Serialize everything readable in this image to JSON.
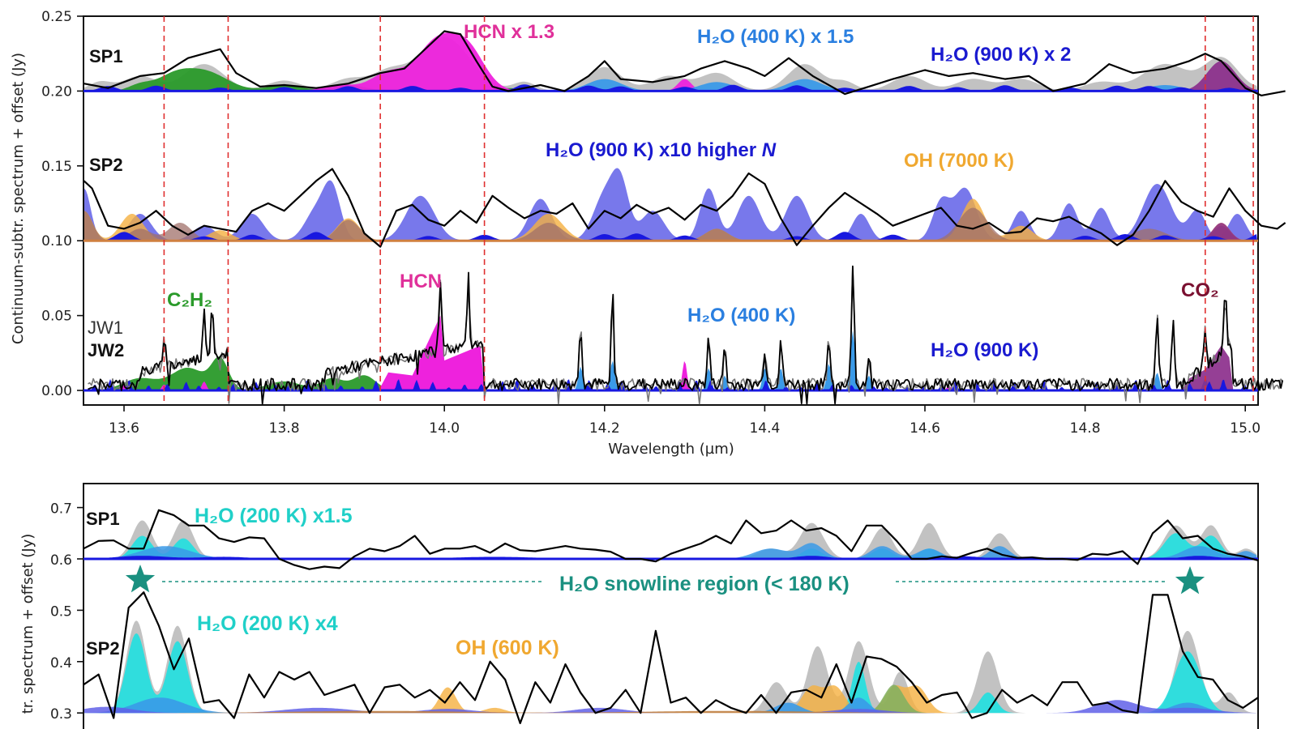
{
  "chart_data": [
    {
      "type": "area",
      "title": "",
      "xlabel": "Wavelength (µm)",
      "ylabel": "Continuum-subtr. spectrum + offset (Jy)",
      "xlim": [
        13.55,
        15.05
      ],
      "ylim": [
        -0.01,
        0.25
      ],
      "grid": false,
      "xticks": [
        13.6,
        13.8,
        14.0,
        14.2,
        14.4,
        14.6,
        14.8,
        15.0
      ],
      "xtick_labels": [
        "13.6",
        "13.8",
        "14.0",
        "14.2",
        "14.4",
        "14.6",
        "14.8",
        "15.0"
      ],
      "yticks": [
        0.0,
        0.05,
        0.1,
        0.15,
        0.2,
        0.25
      ],
      "ytick_labels": [
        "0.00",
        "0.05",
        "0.10",
        "0.15",
        "0.20",
        "0.25"
      ],
      "vlines": [
        13.65,
        13.73,
        13.92,
        14.05,
        14.95,
        15.01
      ],
      "vline_color": "#e03030",
      "offsets": {
        "SP1": 0.2,
        "SP2": 0.1,
        "JW": 0.0
      },
      "row_labels": [
        {
          "text": "SP1",
          "x": 13.56,
          "y": 0.215
        },
        {
          "text": "SP2",
          "x": 13.56,
          "y": 0.145
        },
        {
          "text": "JW1",
          "x": 13.555,
          "y": 0.038
        },
        {
          "text": "JW2",
          "x": 13.555,
          "y": 0.024
        }
      ],
      "annotations": [
        {
          "text": "HCN x 1.3",
          "x": 14.14,
          "y": 0.238,
          "color": "#e0309a"
        },
        {
          "text": "H₂O (400 K) x 1.5",
          "x": 14.48,
          "y": 0.234,
          "color": "#2a7fe0"
        },
        {
          "text": "H₂O (900 K) x 2",
          "x": 14.85,
          "y": 0.223,
          "color": "#1a1ad0"
        },
        {
          "text": "H₂O (900 K) x10 higher N",
          "x": 14.38,
          "y": 0.163,
          "color": "#1a1ad0"
        },
        {
          "text": "OH (7000 K)",
          "x": 14.74,
          "y": 0.155,
          "color": "#f0a830"
        },
        {
          "text": "C₂H₂",
          "x": 13.69,
          "y": 0.058,
          "color": "#2a9a2a"
        },
        {
          "text": "HCN",
          "x": 13.99,
          "y": 0.069,
          "color": "#e0309a"
        },
        {
          "text": "H₂O (400 K)",
          "x": 14.43,
          "y": 0.049,
          "color": "#2a7fe0"
        },
        {
          "text": "H₂O (900 K)",
          "x": 14.76,
          "y": 0.026,
          "color": "#1a1ad0"
        },
        {
          "text": "CO₂",
          "x": 14.98,
          "y": 0.062,
          "color": "#7a1030"
        }
      ],
      "series": [
        {
          "name": "SP1 observed",
          "color": "#000000",
          "offset": 0.2,
          "x": [
            13.55,
            13.58,
            13.62,
            13.65,
            13.68,
            13.7,
            13.72,
            13.74,
            13.77,
            13.8,
            13.84,
            13.88,
            13.92,
            13.95,
            13.98,
            14.0,
            14.02,
            14.04,
            14.06,
            14.08,
            14.12,
            14.15,
            14.18,
            14.2,
            14.22,
            14.26,
            14.3,
            14.32,
            14.35,
            14.38,
            14.4,
            14.43,
            14.46,
            14.5,
            14.53,
            14.56,
            14.6,
            14.63,
            14.66,
            14.7,
            14.73,
            14.76,
            14.8,
            14.83,
            14.86,
            14.9,
            14.93,
            14.95,
            14.97,
            15.0,
            15.02,
            15.05
          ],
          "y": [
            0.005,
            0.002,
            0.01,
            0.012,
            0.022,
            0.025,
            0.028,
            0.012,
            0.003,
            0.004,
            0.002,
            0.005,
            0.012,
            0.015,
            0.03,
            0.04,
            0.038,
            0.02,
            0.003,
            0.0,
            0.004,
            0.0,
            0.01,
            0.02,
            0.008,
            0.006,
            0.01,
            0.015,
            0.02,
            0.015,
            0.01,
            0.022,
            0.01,
            -0.002,
            0.003,
            0.008,
            0.014,
            0.01,
            0.012,
            0.008,
            0.01,
            0.0,
            0.005,
            0.018,
            0.012,
            0.015,
            0.02,
            0.025,
            0.02,
            0.002,
            -0.003,
            0.0
          ]
        },
        {
          "name": "SP2 observed",
          "color": "#000000",
          "offset": 0.1,
          "x": [
            13.55,
            13.56,
            13.58,
            13.6,
            13.62,
            13.64,
            13.66,
            13.68,
            13.7,
            13.72,
            13.74,
            13.76,
            13.78,
            13.8,
            13.82,
            13.84,
            13.86,
            13.88,
            13.9,
            13.92,
            13.94,
            13.96,
            13.98,
            14.0,
            14.02,
            14.04,
            14.06,
            14.08,
            14.1,
            14.12,
            14.14,
            14.16,
            14.18,
            14.2,
            14.22,
            14.24,
            14.26,
            14.28,
            14.3,
            14.32,
            14.34,
            14.36,
            14.38,
            14.4,
            14.42,
            14.44,
            14.46,
            14.48,
            14.5,
            14.52,
            14.54,
            14.56,
            14.58,
            14.6,
            14.62,
            14.64,
            14.66,
            14.68,
            14.7,
            14.72,
            14.74,
            14.76,
            14.78,
            14.8,
            14.82,
            14.84,
            14.86,
            14.88,
            14.9,
            14.92,
            14.94,
            14.96,
            14.98,
            15.0,
            15.02,
            15.04,
            15.05
          ],
          "y": [
            0.04,
            0.035,
            0.01,
            0.008,
            0.012,
            0.02,
            0.01,
            0.004,
            0.01,
            0.008,
            0.006,
            0.02,
            0.025,
            0.02,
            0.03,
            0.04,
            0.048,
            0.03,
            0.005,
            -0.004,
            0.02,
            0.024,
            0.014,
            0.01,
            0.02,
            0.012,
            0.03,
            0.022,
            0.015,
            0.02,
            0.018,
            0.025,
            0.008,
            0.02,
            0.015,
            0.024,
            0.018,
            0.022,
            0.014,
            0.024,
            0.02,
            0.03,
            0.045,
            0.038,
            0.015,
            -0.003,
            0.01,
            0.022,
            0.032,
            0.025,
            0.018,
            0.01,
            0.014,
            0.018,
            0.022,
            0.01,
            0.008,
            0.012,
            0.005,
            0.006,
            0.015,
            0.013,
            0.016,
            0.01,
            0.005,
            -0.003,
            0.004,
            0.02,
            0.04,
            0.026,
            0.02,
            0.016,
            0.035,
            0.02,
            0.01,
            0.008,
            0.012
          ]
        },
        {
          "name": "JW2 observed",
          "color": "#000000",
          "offset": 0.0,
          "peaks": [
            [
              13.65,
              0.02
            ],
            [
              13.7,
              0.03
            ],
            [
              13.71,
              0.034
            ],
            [
              13.995,
              0.048
            ],
            [
              14.03,
              0.045
            ],
            [
              14.17,
              0.04
            ],
            [
              14.21,
              0.061
            ],
            [
              14.33,
              0.03
            ],
            [
              14.35,
              0.025
            ],
            [
              14.4,
              0.023
            ],
            [
              14.42,
              0.031
            ],
            [
              14.48,
              0.031
            ],
            [
              14.51,
              0.077
            ],
            [
              14.53,
              0.021
            ],
            [
              14.89,
              0.045
            ],
            [
              14.91,
              0.04
            ],
            [
              14.95,
              0.025
            ],
            [
              14.975,
              0.037
            ]
          ],
          "baseline": 0.005
        },
        {
          "name": "JW1 observed",
          "color": "#666666",
          "offset": 0.0
        }
      ],
      "model_components": [
        {
          "name": "Total model",
          "color": "#bbbbbb"
        },
        {
          "name": "C2H2",
          "color": "#2a9a2a"
        },
        {
          "name": "HCN",
          "color": "#ee22dd"
        },
        {
          "name": "H2O 400 K",
          "color": "#3a9ae8"
        },
        {
          "name": "H2O 900 K",
          "color": "#1818e0"
        },
        {
          "name": "H2O 900 K x10 higher N",
          "color": "#6060e8"
        },
        {
          "name": "OH 7000 K",
          "color": "#f5b040"
        },
        {
          "name": "CO2",
          "color": "#8a2a8a"
        }
      ]
    },
    {
      "type": "area",
      "title": "",
      "xlabel": "",
      "ylabel": "Continuum-subtr. spectrum + offset (Jy)",
      "ylabel_visible": "tr. spectrum + offset (Jy)",
      "xlim": [
        13.55,
        15.05
      ],
      "ylim": [
        0.3,
        0.75
      ],
      "yticks": [
        0.3,
        0.4,
        0.5,
        0.6,
        0.7
      ],
      "ytick_labels": [
        "0.3",
        "0.4",
        "0.5",
        "0.6",
        "0.7"
      ],
      "grid": false,
      "offsets": {
        "SP1": 0.6,
        "SP2": 0.3
      },
      "row_labels": [
        {
          "text": "SP1",
          "y": 0.68
        },
        {
          "text": "SP2",
          "y": 0.45
        }
      ],
      "annotations": [
        {
          "text": "H₂O (200 K) x1.5",
          "y": 0.683,
          "color": "#20d0c8"
        },
        {
          "text": "H₂O (200 K) x4",
          "y": 0.535,
          "color": "#20d0c8"
        },
        {
          "text": "OH (600 K)",
          "y": 0.42,
          "color": "#f0a830"
        },
        {
          "text": "H₂O snowline region (< 180 K)",
          "y": 0.562,
          "color": "#1a9080"
        }
      ],
      "snowline_markers": [
        "star-left",
        "star-right"
      ],
      "series": [
        {
          "name": "SP1 observed",
          "color": "#000000",
          "offset": 0.6,
          "y": [
            0.02,
            0.035,
            0.036,
            0.02,
            0.02,
            0.095,
            0.085,
            0.065,
            0.065,
            0.04,
            0.033,
            0.042,
            0.04,
            0.0,
            -0.012,
            -0.02,
            -0.015,
            -0.018,
            0.005,
            0.02,
            0.015,
            0.025,
            0.045,
            0.01,
            0.02,
            0.02,
            0.025,
            0.012,
            0.03,
            0.017,
            0.015,
            0.02,
            0.025,
            0.02,
            0.018,
            0.014,
            0.0,
            0.0,
            -0.005,
            0.01,
            0.02,
            0.03,
            0.045,
            0.03,
            0.075,
            0.05,
            0.055,
            0.075,
            0.055,
            0.06,
            0.045,
            0.015,
            0.065,
            0.065,
            0.035,
            0.0,
            0.0,
            0.005,
            0.002,
            0.012,
            0.02,
            0.008,
            0.002,
            0.003,
            0.0,
            0.0,
            -0.002,
            0.01,
            0.008,
            0.015,
            -0.01,
            0.05,
            0.075,
            0.04,
            0.045,
            0.02,
            0.01,
            0.005,
            -0.003
          ]
        },
        {
          "name": "SP2 observed",
          "color": "#000000",
          "offset": 0.3,
          "y": [
            0.055,
            0.075,
            -0.01,
            0.205,
            0.235,
            0.17,
            0.085,
            0.145,
            0.02,
            0.025,
            -0.01,
            0.075,
            0.03,
            0.08,
            0.065,
            0.08,
            0.035,
            0.045,
            0.055,
            0.0,
            0.05,
            0.055,
            0.03,
            0.045,
            0.02,
            0.06,
            0.025,
            0.1,
            0.065,
            -0.02,
            0.06,
            0.02,
            0.095,
            0.04,
            0.0,
            0.01,
            0.045,
            0.0,
            0.16,
            0.02,
            0.03,
            0.0,
            0.025,
            0.01,
            0.0,
            0.035,
            0.0,
            0.04,
            0.045,
            0.03,
            0.095,
            0.02,
            0.11,
            0.105,
            0.09,
            0.06,
            0.02,
            0.035,
            0.04,
            -0.01,
            0.0,
            0.045,
            0.02,
            0.035,
            0.015,
            0.06,
            0.06,
            0.015,
            0.02,
            0.005,
            0.0,
            0.23,
            0.23,
            0.12,
            0.07,
            0.065,
            0.025,
            0.01,
            0.03
          ]
        }
      ]
    }
  ]
}
